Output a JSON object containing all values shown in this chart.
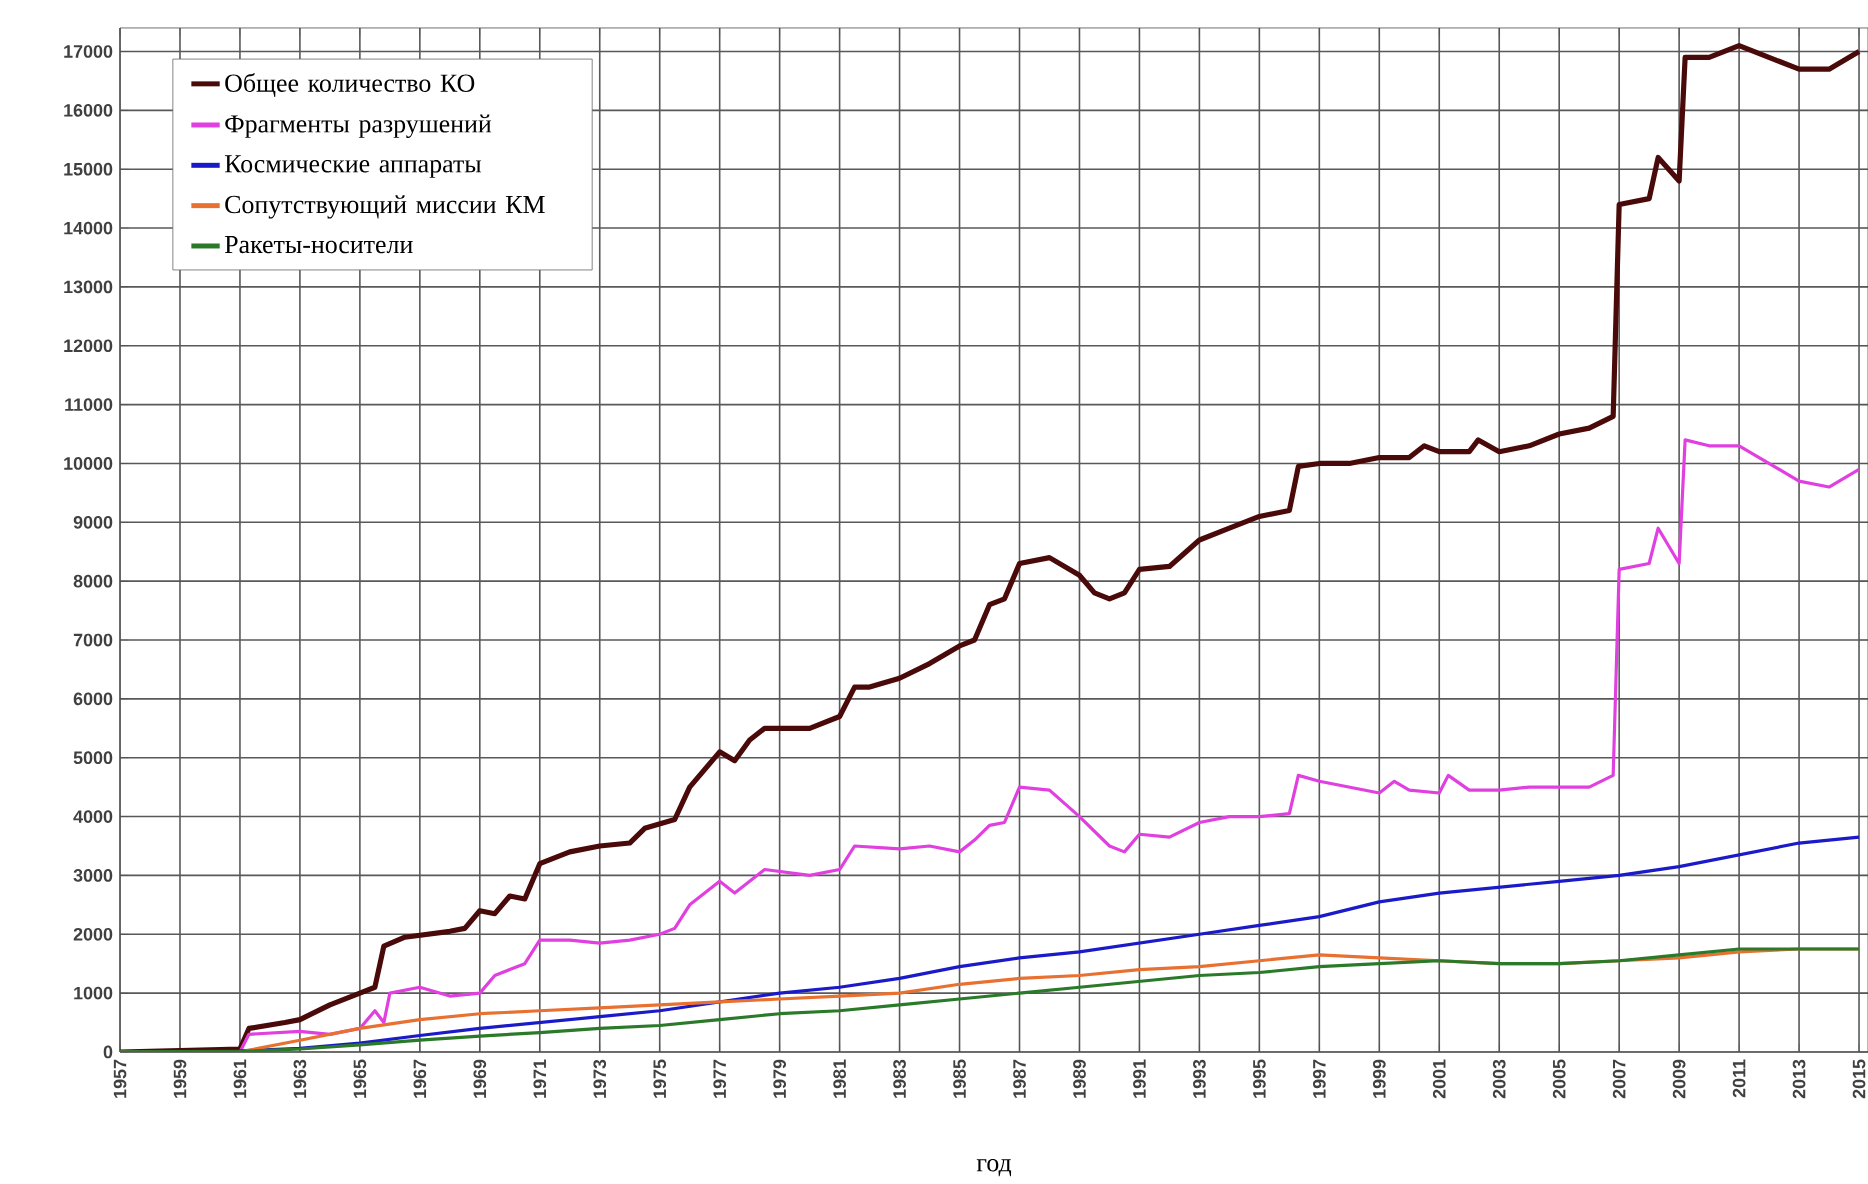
{
  "chart_data": {
    "type": "line",
    "xlabel": "год",
    "xlim": [
      1957,
      2015.3
    ],
    "ylim": [
      0,
      17400
    ],
    "xticks": [
      1957,
      1959,
      1961,
      1963,
      1965,
      1967,
      1969,
      1971,
      1973,
      1975,
      1977,
      1979,
      1981,
      1983,
      1985,
      1987,
      1989,
      1991,
      1993,
      1995,
      1997,
      1999,
      2001,
      2003,
      2005,
      2007,
      2009,
      2011,
      2013,
      2015
    ],
    "yticks": [
      0,
      1000,
      2000,
      3000,
      4000,
      5000,
      6000,
      7000,
      8000,
      9000,
      10000,
      11000,
      12000,
      13000,
      14000,
      15000,
      16000,
      17000
    ],
    "grid": true,
    "legend": "top left",
    "marker": "none",
    "line_style": "solid",
    "series": [
      {
        "name": "Общее количество КО",
        "color": "#4a0a0a",
        "x": [
          1957,
          1961,
          1961.3,
          1962.5,
          1963,
          1964,
          1965,
          1965.5,
          1965.8,
          1966.5,
          1968,
          1968.5,
          1969,
          1969.5,
          1970,
          1970.5,
          1971,
          1972,
          1973,
          1974,
          1974.5,
          1975.5,
          1976,
          1977,
          1977.5,
          1978,
          1978.5,
          1980,
          1981,
          1981.5,
          1982,
          1983,
          1984,
          1985,
          1985.5,
          1986,
          1986.5,
          1987,
          1988,
          1989,
          1989.5,
          1990,
          1990.5,
          1991,
          1992,
          1993,
          1994,
          1995,
          1996,
          1996.3,
          1997,
          1998,
          1999,
          2000,
          2000.5,
          2001,
          2002,
          2002.3,
          2003,
          2004,
          2005,
          2006,
          2006.8,
          2007,
          2008,
          2008.3,
          2009,
          2009.2,
          2010,
          2011,
          2012,
          2013,
          2014,
          2015
        ],
        "values": [
          0,
          50,
          400,
          500,
          550,
          800,
          1000,
          1100,
          1800,
          1950,
          2050,
          2100,
          2400,
          2350,
          2650,
          2600,
          3200,
          3400,
          3500,
          3550,
          3800,
          3950,
          4500,
          5100,
          4950,
          5300,
          5500,
          5500,
          5700,
          6200,
          6200,
          6350,
          6600,
          6900,
          7000,
          7600,
          7700,
          8300,
          8400,
          8100,
          7800,
          7700,
          7800,
          8200,
          8250,
          8700,
          8900,
          9100,
          9200,
          9950,
          10000,
          10000,
          10100,
          10100,
          10300,
          10200,
          10200,
          10400,
          10200,
          10300,
          10500,
          10600,
          10800,
          14400,
          14500,
          15200,
          14800,
          16900,
          16900,
          17100,
          16900,
          16700,
          16700,
          17000
        ]
      },
      {
        "name": "Фрагменты разрушений",
        "color": "#e040e0",
        "x": [
          1957,
          1961,
          1961.3,
          1963,
          1964,
          1965,
          1965.5,
          1965.8,
          1966,
          1967,
          1968,
          1969,
          1969.5,
          1970,
          1970.5,
          1971,
          1972,
          1973,
          1974,
          1975,
          1975.5,
          1976,
          1977,
          1977.5,
          1978,
          1978.5,
          1980,
          1981,
          1981.5,
          1983,
          1984,
          1985,
          1985.5,
          1986,
          1986.5,
          1987,
          1988,
          1989,
          1990,
          1990.5,
          1991,
          1992,
          1993,
          1994,
          1995,
          1996,
          1996.3,
          1997,
          1998,
          1999,
          1999.5,
          2000,
          2001,
          2001.3,
          2002,
          2003,
          2004,
          2005,
          2006,
          2006.8,
          2007,
          2008,
          2008.3,
          2009,
          2009.2,
          2010,
          2011,
          2012,
          2013,
          2014,
          2015
        ],
        "values": [
          0,
          0,
          300,
          350,
          300,
          400,
          700,
          500,
          1000,
          1100,
          950,
          1000,
          1300,
          1400,
          1500,
          1900,
          1900,
          1850,
          1900,
          2000,
          2100,
          2500,
          2900,
          2700,
          2900,
          3100,
          3000,
          3100,
          3500,
          3450,
          3500,
          3400,
          3600,
          3850,
          3900,
          4500,
          4450,
          4000,
          3500,
          3400,
          3700,
          3650,
          3900,
          4000,
          4000,
          4050,
          4700,
          4600,
          4500,
          4400,
          4600,
          4450,
          4400,
          4700,
          4450,
          4450,
          4500,
          4500,
          4500,
          4700,
          8200,
          8300,
          8900,
          8300,
          10400,
          10300,
          10300,
          10000,
          9700,
          9600,
          9900
        ]
      },
      {
        "name": "Космические аппараты",
        "color": "#1a1ac8",
        "x": [
          1957,
          1961,
          1963,
          1965,
          1967,
          1969,
          1971,
          1973,
          1975,
          1977,
          1979,
          1981,
          1983,
          1985,
          1987,
          1989,
          1991,
          1993,
          1995,
          1997,
          1999,
          2001,
          2003,
          2005,
          2007,
          2009,
          2011,
          2013,
          2015
        ],
        "values": [
          0,
          20,
          60,
          150,
          280,
          400,
          500,
          600,
          700,
          850,
          1000,
          1100,
          1250,
          1450,
          1600,
          1700,
          1850,
          2000,
          2150,
          2300,
          2550,
          2700,
          2800,
          2900,
          3000,
          3150,
          3350,
          3550,
          3650
        ]
      },
      {
        "name": "Сопутствующий миссии КМ",
        "color": "#e87030",
        "x": [
          1957,
          1961,
          1963,
          1965,
          1967,
          1969,
          1971,
          1973,
          1975,
          1977,
          1979,
          1981,
          1983,
          1985,
          1987,
          1989,
          1991,
          1993,
          1995,
          1997,
          1999,
          2001,
          2003,
          2005,
          2007,
          2009,
          2011,
          2013,
          2015
        ],
        "values": [
          0,
          0,
          200,
          400,
          550,
          650,
          700,
          750,
          800,
          850,
          900,
          950,
          1000,
          1150,
          1250,
          1300,
          1400,
          1450,
          1550,
          1650,
          1600,
          1550,
          1500,
          1500,
          1550,
          1600,
          1700,
          1750,
          1750
        ]
      },
      {
        "name": "Ракеты-носители",
        "color": "#2a7a2a",
        "x": [
          1957,
          1961,
          1963,
          1965,
          1967,
          1969,
          1971,
          1973,
          1975,
          1977,
          1979,
          1981,
          1983,
          1985,
          1987,
          1989,
          1991,
          1993,
          1995,
          1997,
          1999,
          2001,
          2003,
          2005,
          2007,
          2009,
          2011,
          2013,
          2015
        ],
        "values": [
          0,
          10,
          50,
          120,
          200,
          270,
          330,
          400,
          450,
          550,
          650,
          700,
          800,
          900,
          1000,
          1100,
          1200,
          1300,
          1350,
          1450,
          1500,
          1550,
          1500,
          1500,
          1550,
          1650,
          1750,
          1750,
          1750
        ]
      }
    ]
  }
}
